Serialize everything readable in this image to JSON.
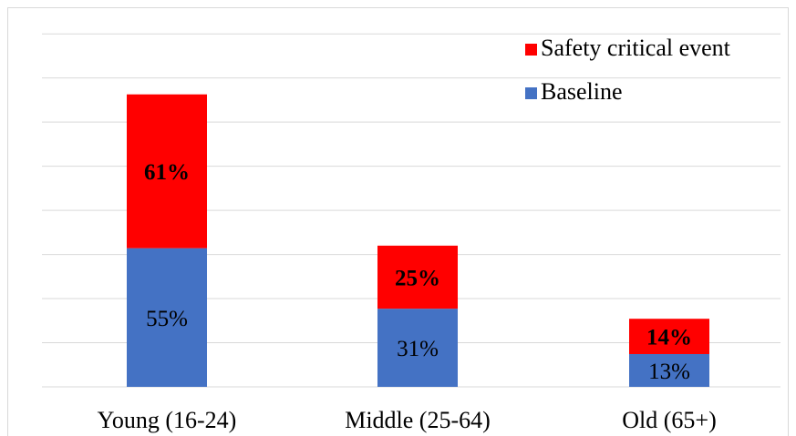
{
  "chart_data": {
    "type": "bar",
    "stacked": true,
    "title": "",
    "xlabel": "",
    "ylabel": "",
    "grid": true,
    "legend_position": "top-right",
    "categories": [
      "Young (16-24)",
      "Middle (25-64)",
      "Old (65+)"
    ],
    "series": [
      {
        "name": "Baseline",
        "color": "#4472c4",
        "values": [
          55,
          31,
          13
        ],
        "labels": [
          "55%",
          "31%",
          "13%"
        ],
        "label_color": "#000000",
        "label_bold": false
      },
      {
        "name": "Safety critical event",
        "color": "#ff0000",
        "values": [
          61,
          25,
          14
        ],
        "labels": [
          "61%",
          "25%",
          "14%"
        ],
        "label_color": "#000000",
        "label_bold": true
      }
    ],
    "ylim": [
      0,
      140
    ],
    "y_gridlines": [
      0,
      17.5,
      35,
      52.5,
      70,
      87.5,
      105,
      122.5,
      140
    ]
  }
}
